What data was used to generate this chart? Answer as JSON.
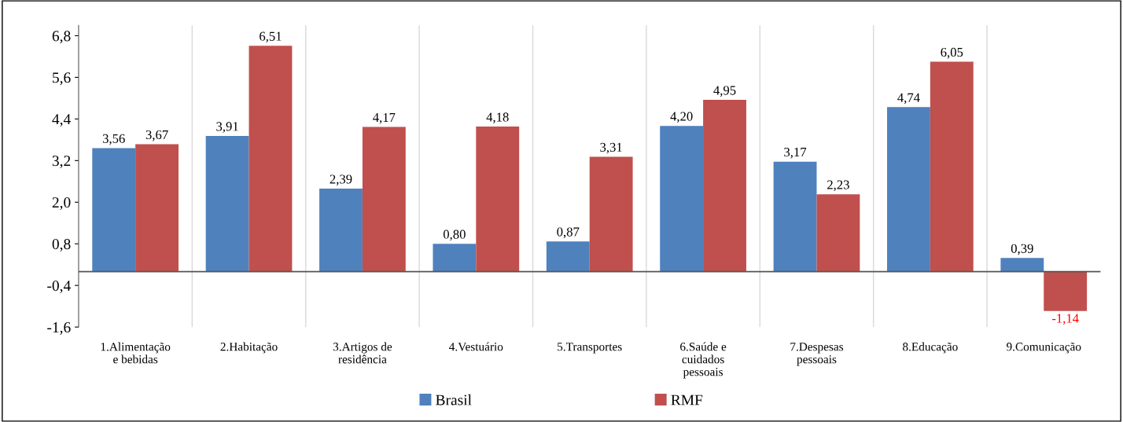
{
  "chart_data": {
    "type": "bar",
    "categories": [
      "1.Alimentação\ne bebidas",
      "2.Habitação",
      "3.Artigos de\nresidência",
      "4.Vestuário",
      "5.Transportes",
      "6.Saúde e\ncuidados\npessoais",
      "7.Despesas\npessoais",
      "8.Educação",
      "9.Comunicação"
    ],
    "series": [
      {
        "name": "Brasil",
        "color": "#4f81bd",
        "values": [
          3.56,
          3.91,
          2.39,
          0.8,
          0.87,
          4.2,
          3.17,
          4.74,
          0.39
        ],
        "value_labels": [
          "3,56",
          "3,91",
          "2,39",
          "0,80",
          "0,87",
          "4,20",
          "3,17",
          "4,74",
          "0,39"
        ]
      },
      {
        "name": "RMF",
        "color": "#c0504d",
        "values": [
          3.67,
          6.51,
          4.17,
          4.18,
          3.31,
          4.95,
          2.23,
          6.05,
          -1.14
        ],
        "value_labels": [
          "3,67",
          "6,51",
          "4,17",
          "4,18",
          "3,31",
          "4,95",
          "2,23",
          "6,05",
          "-1,14"
        ]
      }
    ],
    "ylim": [
      -1.6,
      7.1
    ],
    "yticks": [
      {
        "value": -1.6,
        "label": "-1,6"
      },
      {
        "value": -0.4,
        "label": "-0,4"
      },
      {
        "value": 0.8,
        "label": "0,8"
      },
      {
        "value": 2.0,
        "label": "2,0"
      },
      {
        "value": 3.2,
        "label": "3,2"
      },
      {
        "value": 4.4,
        "label": "4,4"
      },
      {
        "value": 5.6,
        "label": "5,6"
      },
      {
        "value": 6.8,
        "label": "6,8"
      }
    ],
    "grid": "x",
    "legend": "bottom"
  }
}
